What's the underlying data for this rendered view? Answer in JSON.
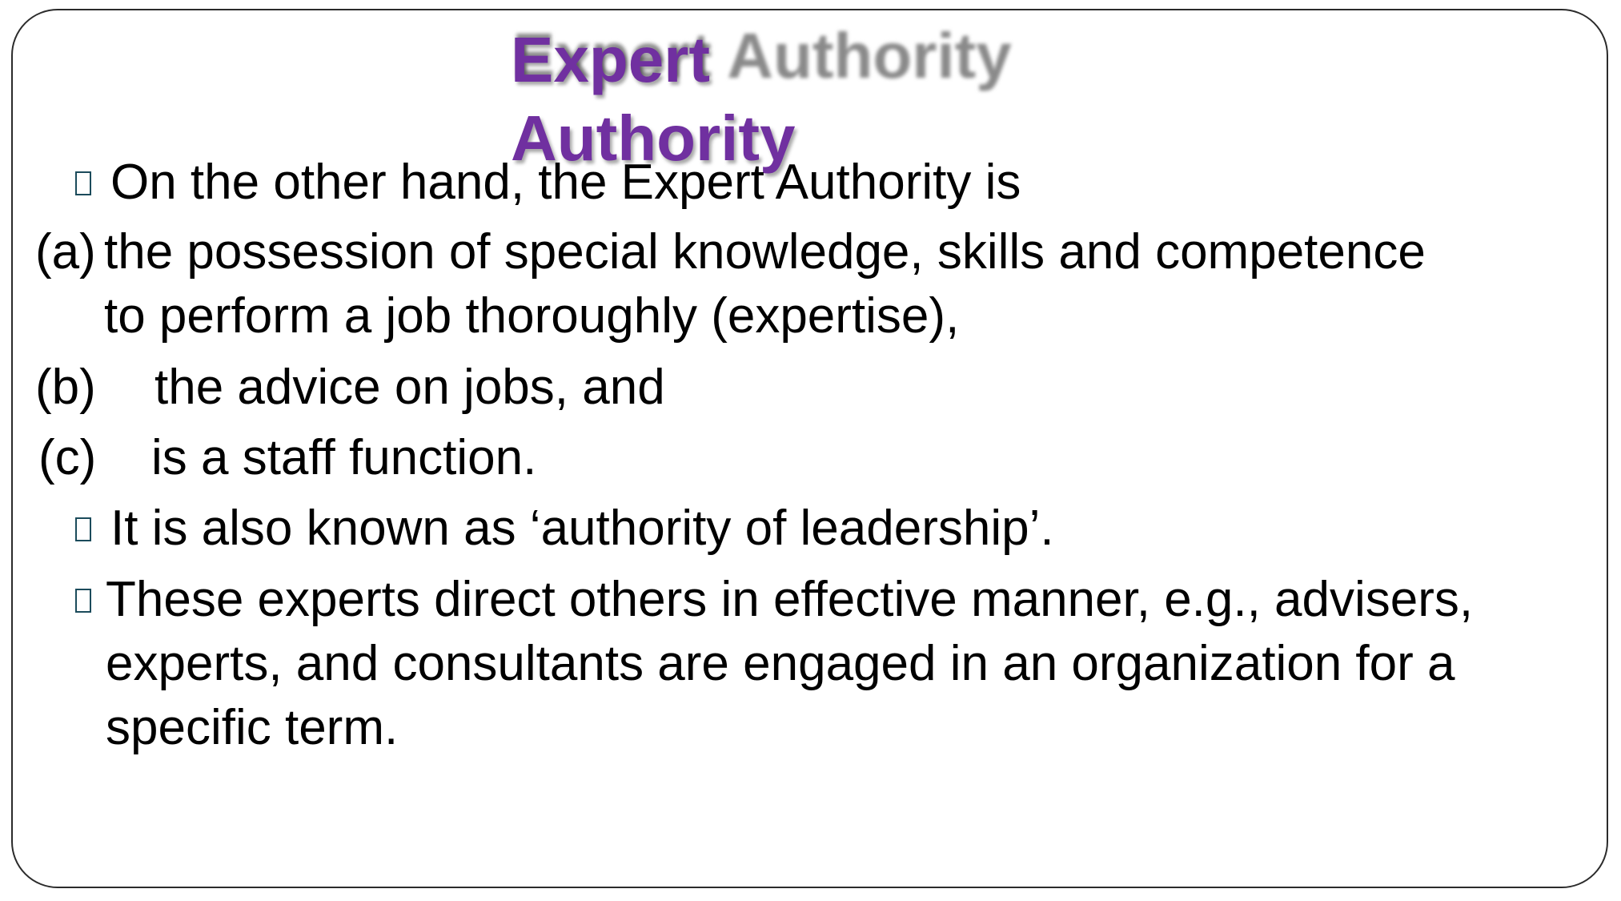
{
  "slide": {
    "title_line1": "Expert",
    "title_line2": "Authority",
    "title_shadow": "Expert Authority",
    "intro": "On the other hand, the Expert Authority is",
    "items": [
      {
        "marker": "(a)",
        "lines": [
          "the possession of special knowledge, skills and competence",
          "to perform a job thoroughly (expertise),"
        ]
      },
      {
        "marker": "(b)",
        "lines": [
          "the advice on jobs, and"
        ]
      },
      {
        "marker": "(c)",
        "lines": [
          "is a staff function."
        ]
      }
    ],
    "bullet2": "It is also known as ‘authority of leadership’.",
    "bullet3_lines": [
      "These experts direct others in effective manner, e.g., advisers,",
      "experts, and consultants are engaged in an organization for a",
      "specific term."
    ],
    "colors": {
      "title": "#7030a0",
      "text": "#000000",
      "bullet_outline": "#1b4b5b",
      "frame": "#2b2b2b"
    },
    "bullet_icon": "square-bullet-icon"
  }
}
